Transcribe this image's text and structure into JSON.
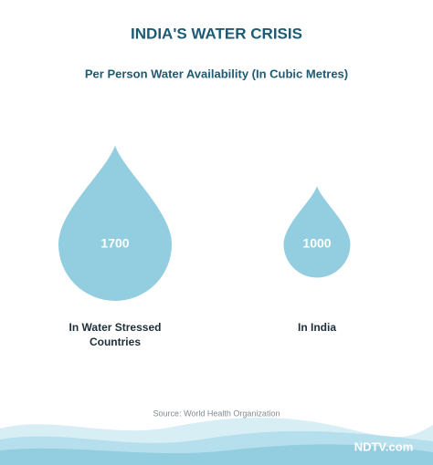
{
  "chart_data": {
    "type": "drop",
    "title": "INDIA'S WATER CRISIS",
    "subtitle": "Per Person Water Availability (In Cubic Metres)",
    "categories": [
      "In Water Stressed Countries",
      "In India"
    ],
    "values": [
      1700,
      1000
    ],
    "color": "#92cde0",
    "source": "Source: World Health Organization",
    "logo": "NDTV.com"
  }
}
